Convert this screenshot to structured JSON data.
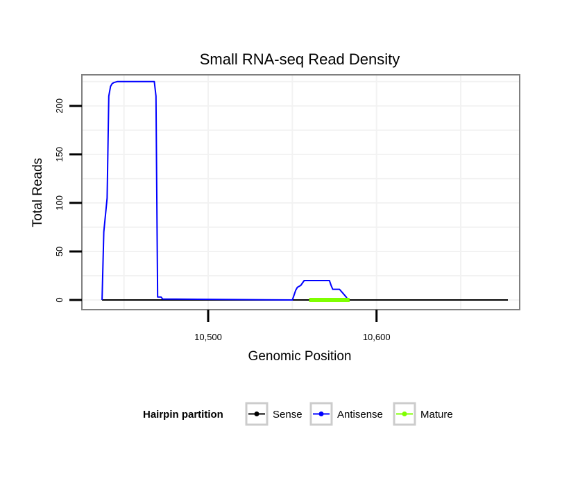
{
  "chart_data": {
    "type": "line",
    "title": "Small RNA-seq Read Density",
    "xlabel": "Genomic Position",
    "ylabel": "Total Reads",
    "xlim": [
      10425,
      10685
    ],
    "ylim": [
      -10,
      232
    ],
    "x_ticks": [
      10500,
      10600
    ],
    "x_tick_labels": [
      "10,500",
      "10,600"
    ],
    "y_ticks": [
      0,
      50,
      100,
      150,
      200
    ],
    "y_tick_labels": [
      "0",
      "50",
      "100",
      "150",
      "200"
    ],
    "grid": true,
    "legend": {
      "title": "Hairpin partition",
      "position": "bottom",
      "entries": [
        {
          "label": "Sense",
          "color": "#000000"
        },
        {
          "label": "Antisense",
          "color": "#0000ff"
        },
        {
          "label": "Mature",
          "color": "#7fff00"
        }
      ]
    },
    "series": [
      {
        "name": "Sense",
        "color": "#000000",
        "x": [
          10437,
          10678
        ],
        "y": [
          0,
          0
        ]
      },
      {
        "name": "Antisense",
        "color": "#0000ff",
        "x": [
          10437,
          10438,
          10440,
          10441,
          10442,
          10443,
          10444,
          10446,
          10448,
          10452,
          10455,
          10460,
          10465,
          10468,
          10469,
          10470,
          10472,
          10473,
          10550,
          10552,
          10553,
          10555,
          10557,
          10558,
          10560,
          10566,
          10570,
          10572,
          10573,
          10574,
          10578,
          10580,
          10582,
          10583
        ],
        "y": [
          0,
          70,
          105,
          210,
          220,
          223,
          224,
          225,
          225,
          225,
          225,
          225,
          225,
          225,
          210,
          3,
          3,
          1,
          0,
          10,
          13,
          15,
          20,
          20,
          20,
          20,
          20,
          20,
          15,
          11,
          11,
          7,
          3,
          0
        ]
      },
      {
        "name": "Mature",
        "color": "#7fff00",
        "x": [
          10560,
          10584
        ],
        "y": [
          0,
          0
        ]
      }
    ]
  }
}
